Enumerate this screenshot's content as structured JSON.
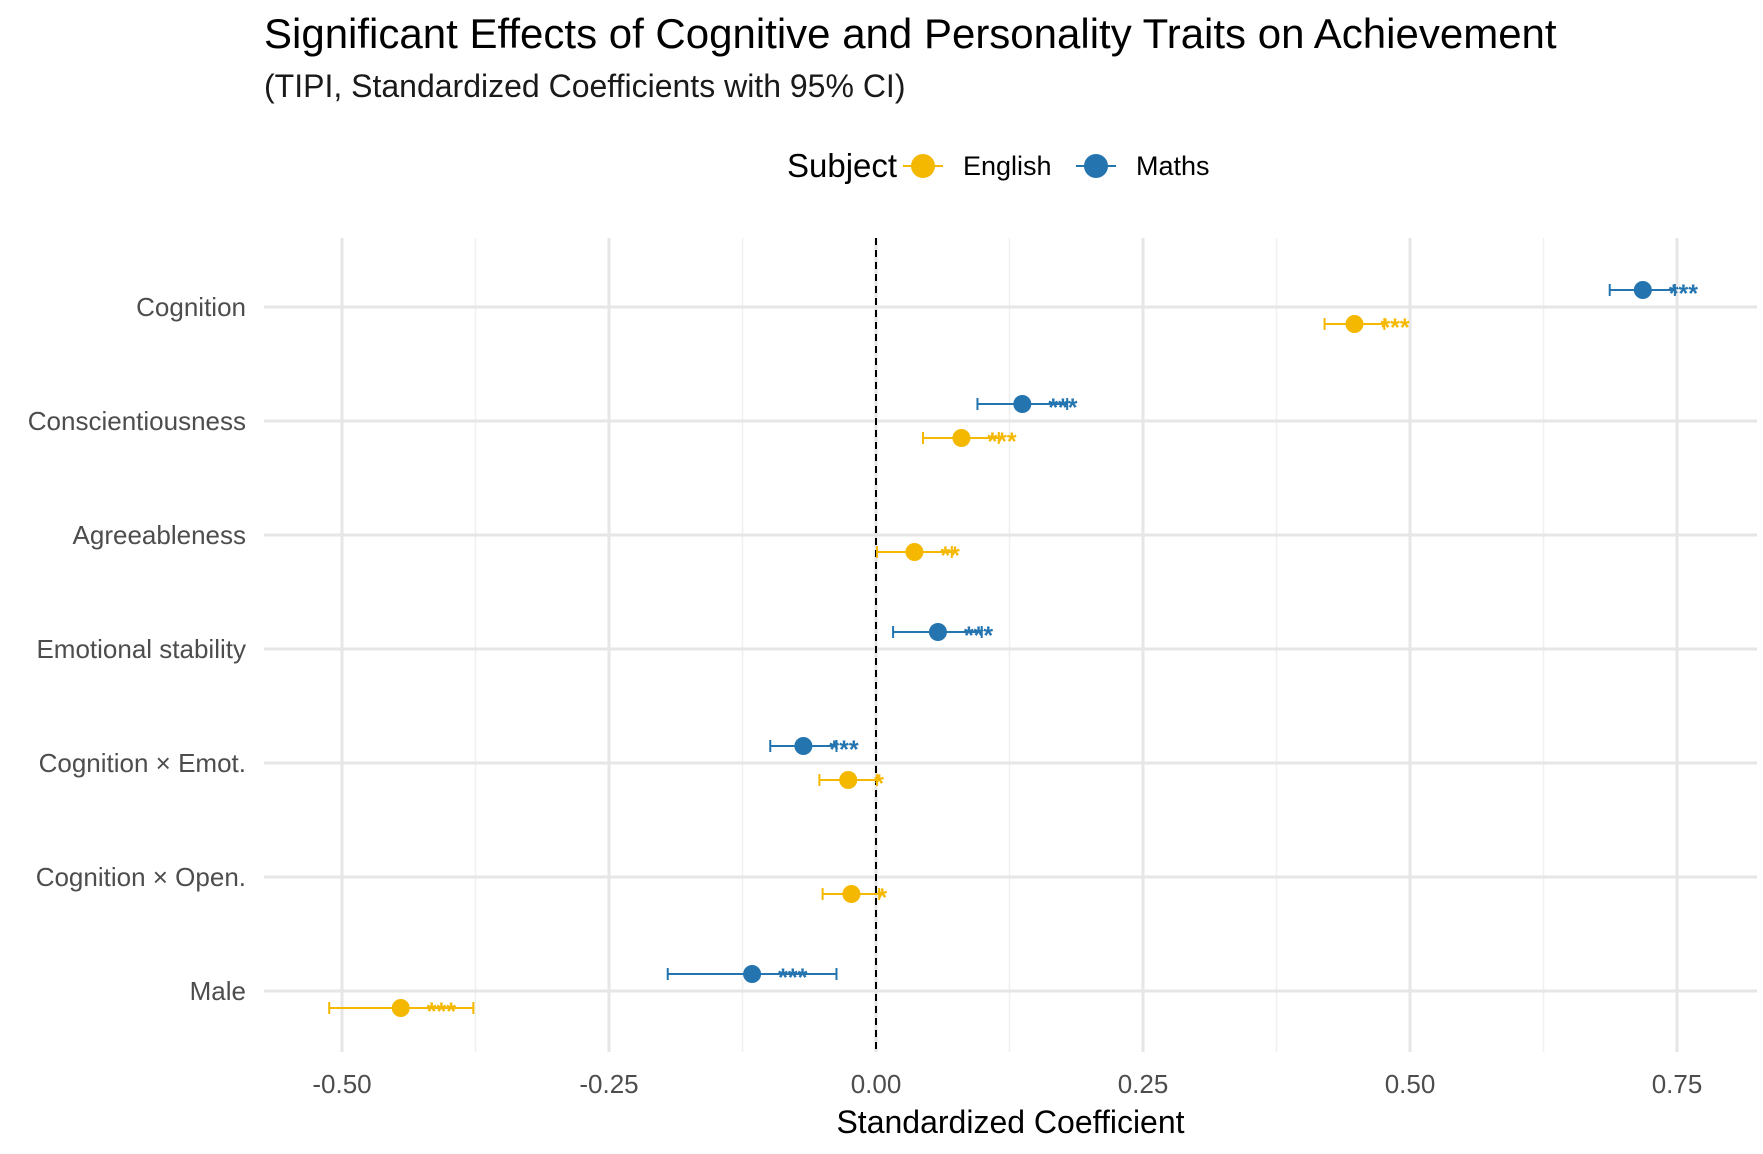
{
  "title": "Significant Effects of Cognitive and Personality Traits on Achievement",
  "subtitle": "(TIPI, Standardized Coefficients with 95% CI)",
  "legend": {
    "title": "Subject",
    "items": [
      {
        "label": "English",
        "color": "#F5B800"
      },
      {
        "label": "Maths",
        "color": "#2474B0"
      }
    ]
  },
  "chart_data": {
    "type": "scatter",
    "xlabel": "Standardized Coefficient",
    "ylabel": "",
    "xlim": [
      -0.575,
      0.8
    ],
    "x_ticks": [
      -0.5,
      -0.25,
      0.0,
      0.25,
      0.5,
      0.75
    ],
    "x_tick_labels": [
      "-0.50",
      "-0.25",
      "0.00",
      "0.25",
      "0.50",
      "0.75"
    ],
    "categories": [
      "Cognition",
      "Conscientiousness",
      "Agreeableness",
      "Emotional stability",
      "Cognition × Emot.",
      "Cognition × Open.",
      "Male"
    ],
    "reference_line": 0,
    "legend_position": "top",
    "grid": true,
    "series": [
      {
        "name": "English",
        "color": "#F5B800",
        "points": [
          {
            "category": "Cognition",
            "estimate": 0.448,
            "ci_low": 0.42,
            "ci_high": 0.476,
            "sig": "***"
          },
          {
            "category": "Conscientiousness",
            "estimate": 0.08,
            "ci_low": 0.044,
            "ci_high": 0.115,
            "sig": "***"
          },
          {
            "category": "Agreeableness",
            "estimate": 0.036,
            "ci_low": 0.001,
            "ci_high": 0.071,
            "sig": "**"
          },
          {
            "category": "Cognition × Emot.",
            "estimate": -0.026,
            "ci_low": -0.053,
            "ci_high": 0.001,
            "sig": "*"
          },
          {
            "category": "Cognition × Open.",
            "estimate": -0.023,
            "ci_low": -0.05,
            "ci_high": 0.003,
            "sig": "*"
          },
          {
            "category": "Male",
            "estimate": -0.445,
            "ci_low": -0.512,
            "ci_high": -0.377,
            "sig": "***"
          }
        ]
      },
      {
        "name": "Maths",
        "color": "#2474B0",
        "points": [
          {
            "category": "Cognition",
            "estimate": 0.718,
            "ci_low": 0.687,
            "ci_high": 0.748,
            "sig": "***"
          },
          {
            "category": "Conscientiousness",
            "estimate": 0.137,
            "ci_low": 0.095,
            "ci_high": 0.179,
            "sig": "***"
          },
          {
            "category": "Emotional stability",
            "estimate": 0.058,
            "ci_low": 0.016,
            "ci_high": 0.099,
            "sig": "***"
          },
          {
            "category": "Cognition × Emot.",
            "estimate": -0.068,
            "ci_low": -0.099,
            "ci_high": -0.037,
            "sig": "***"
          },
          {
            "category": "Male",
            "estimate": -0.116,
            "ci_low": -0.195,
            "ci_high": -0.037,
            "sig": "***"
          }
        ]
      }
    ]
  }
}
